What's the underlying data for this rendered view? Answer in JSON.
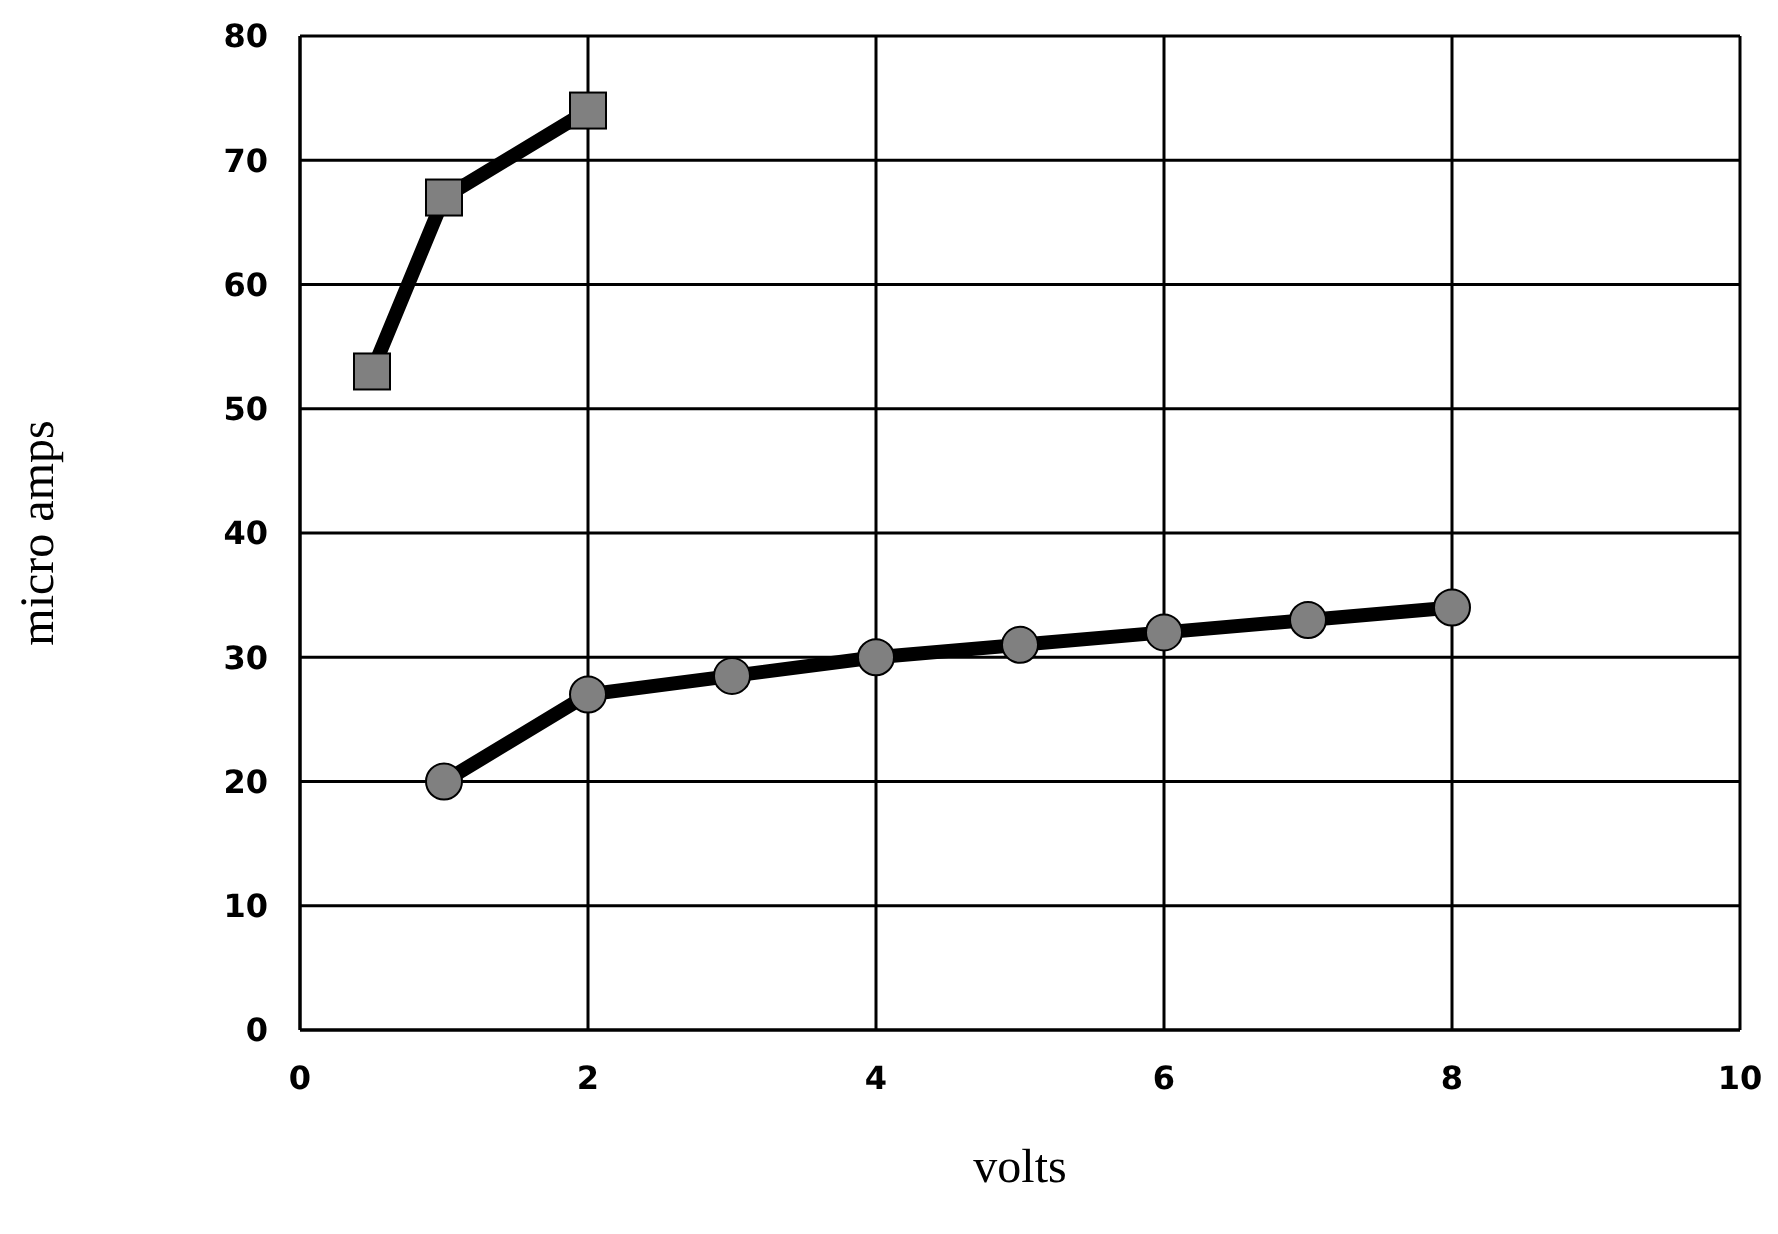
{
  "chart_data": {
    "type": "line",
    "xlabel": "volts",
    "ylabel": "micro amps",
    "xlim": [
      0,
      10
    ],
    "xticks": [
      0,
      2,
      4,
      6,
      8,
      10
    ],
    "ylim": [
      0,
      80
    ],
    "yticks": [
      0,
      10,
      20,
      30,
      40,
      50,
      60,
      70,
      80
    ],
    "grid": true,
    "line_style": "solid",
    "series": [
      {
        "color": "#000000",
        "marker": "square",
        "x": [
          0.5,
          1,
          2
        ],
        "values": [
          53,
          67,
          74
        ]
      },
      {
        "color": "#000000",
        "marker": "circle",
        "x": [
          1,
          2,
          3,
          4,
          5,
          6,
          7,
          8
        ],
        "values": [
          20,
          27,
          28.5,
          30,
          31,
          32,
          33,
          34
        ]
      }
    ]
  }
}
